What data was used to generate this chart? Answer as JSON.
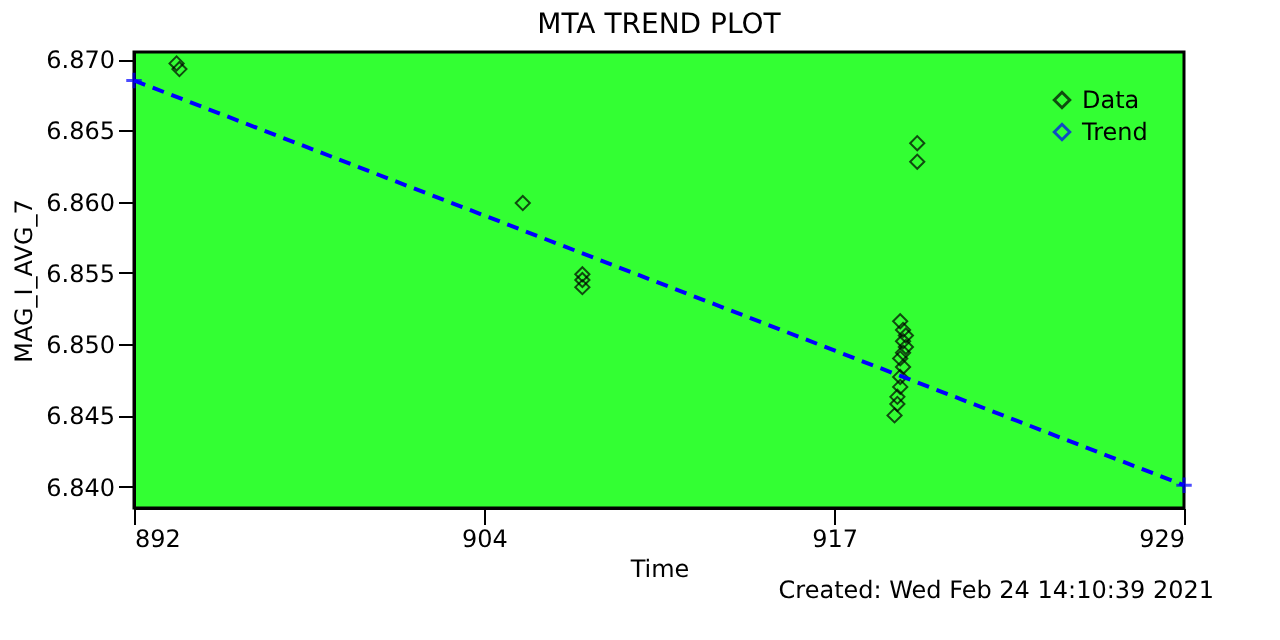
{
  "chart_data": {
    "type": "scatter",
    "title": "MTA TREND PLOT",
    "xlabel": "Time",
    "ylabel": "MAG_I_AVG_7",
    "annotations": [
      "Created: Wed Feb 24 14:10:39 2021"
    ],
    "xlim": [
      892,
      929
    ],
    "xticks": [
      {
        "value": 892,
        "label": "892"
      },
      {
        "value": 904.33,
        "label": "904"
      },
      {
        "value": 916.67,
        "label": "917"
      },
      {
        "value": 929,
        "label": "929"
      }
    ],
    "ylim": [
      6.8385,
      6.8705
    ],
    "yticks": [
      {
        "value": 6.84,
        "label": "6.840"
      },
      {
        "value": 6.845,
        "label": "6.845"
      },
      {
        "value": 6.85,
        "label": "6.850"
      },
      {
        "value": 6.855,
        "label": "6.855"
      },
      {
        "value": 6.86,
        "label": "6.860"
      },
      {
        "value": 6.865,
        "label": "6.865"
      },
      {
        "value": 6.87,
        "label": "6.870"
      }
    ],
    "legend": "top right",
    "grid": false,
    "series": [
      {
        "name": "Data",
        "type": "scatter",
        "marker": "diamond",
        "color": "#000000",
        "x": [
          893.5,
          893.6,
          905.7,
          907.8,
          907.8,
          907.8,
          919.0,
          919.1,
          919.2,
          919.1,
          919.2,
          919.1,
          919.0,
          919.1,
          919.0,
          919.0,
          918.9,
          918.9,
          918.8,
          919.6,
          919.6
        ],
        "values": [
          6.8697,
          6.8693,
          6.8599,
          6.8549,
          6.8545,
          6.854,
          6.8516,
          6.851,
          6.8506,
          6.8502,
          6.8498,
          6.8494,
          6.849,
          6.8484,
          6.8477,
          6.847,
          6.8463,
          6.8458,
          6.845,
          6.8641,
          6.8628
        ]
      },
      {
        "name": "Trend",
        "type": "line",
        "line_style": "dashed",
        "marker": "cross",
        "color": "#0000ff",
        "x": [
          892,
          929
        ],
        "values": [
          6.8685,
          6.8401
        ]
      }
    ]
  }
}
